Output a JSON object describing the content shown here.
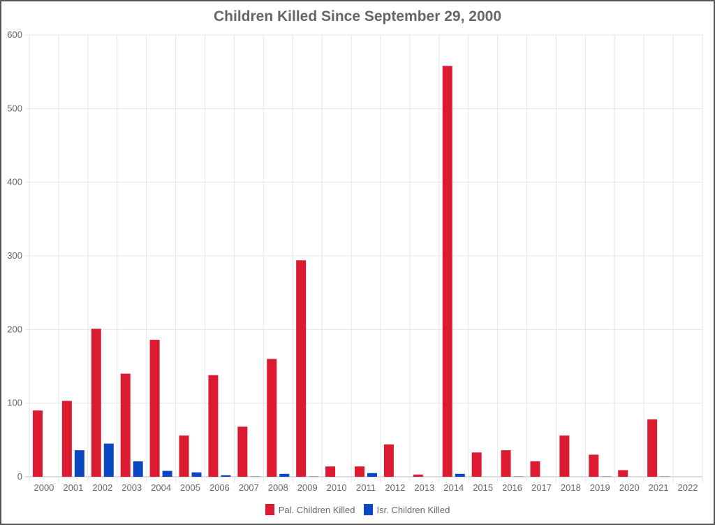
{
  "chart_data": {
    "type": "bar",
    "title": "Children Killed Since September 29, 2000",
    "xlabel": "",
    "ylabel": "",
    "ylim": [
      0,
      600
    ],
    "yticks": [
      "0",
      "100",
      "200",
      "300",
      "400",
      "500",
      "600"
    ],
    "grid": true,
    "legend_placement": "bottom",
    "categories": [
      "2000",
      "2001",
      "2002",
      "2003",
      "2004",
      "2005",
      "2006",
      "2007",
      "2008",
      "2009",
      "2010",
      "2011",
      "2012",
      "2013",
      "2014",
      "2015",
      "2016",
      "2017",
      "2018",
      "2019",
      "2020",
      "2021",
      "2022"
    ],
    "series": [
      {
        "name": "Pal. Children Killed",
        "color": "#dc1a30",
        "values": [
          90,
          103,
          201,
          140,
          186,
          56,
          138,
          68,
          160,
          294,
          14,
          14,
          44,
          3,
          558,
          33,
          36,
          21,
          56,
          30,
          9,
          78,
          0
        ]
      },
      {
        "name": "Isr. Children Killed",
        "color": "#0a47c0",
        "values": [
          0,
          36,
          45,
          21,
          8,
          6,
          2,
          1,
          4,
          1,
          0,
          5,
          0,
          0,
          4,
          0,
          1,
          0,
          0,
          1,
          0,
          1,
          0
        ]
      }
    ]
  }
}
